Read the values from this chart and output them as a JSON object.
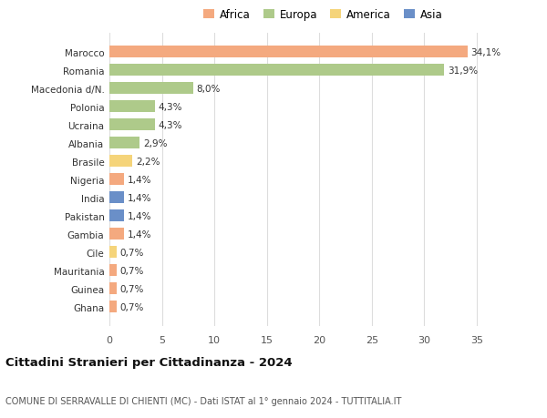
{
  "countries": [
    "Marocco",
    "Romania",
    "Macedonia d/N.",
    "Polonia",
    "Ucraina",
    "Albania",
    "Brasile",
    "Nigeria",
    "India",
    "Pakistan",
    "Gambia",
    "Cile",
    "Mauritania",
    "Guinea",
    "Ghana"
  ],
  "values": [
    34.1,
    31.9,
    8.0,
    4.3,
    4.3,
    2.9,
    2.2,
    1.4,
    1.4,
    1.4,
    1.4,
    0.7,
    0.7,
    0.7,
    0.7
  ],
  "labels": [
    "34,1%",
    "31,9%",
    "8,0%",
    "4,3%",
    "4,3%",
    "2,9%",
    "2,2%",
    "1,4%",
    "1,4%",
    "1,4%",
    "1,4%",
    "0,7%",
    "0,7%",
    "0,7%",
    "0,7%"
  ],
  "continents": [
    "Africa",
    "Europa",
    "Europa",
    "Europa",
    "Europa",
    "Europa",
    "America",
    "Africa",
    "Asia",
    "Asia",
    "Africa",
    "America",
    "Africa",
    "Africa",
    "Africa"
  ],
  "colors": {
    "Africa": "#F4A97F",
    "Europa": "#AECA8A",
    "America": "#F5D47A",
    "Asia": "#6A8FC8"
  },
  "legend_items": [
    "Africa",
    "Europa",
    "America",
    "Asia"
  ],
  "legend_colors": [
    "#F4A97F",
    "#AECA8A",
    "#F5D47A",
    "#6A8FC8"
  ],
  "title": "Cittadini Stranieri per Cittadinanza - 2024",
  "subtitle": "COMUNE DI SERRAVALLE DI CHIENTI (MC) - Dati ISTAT al 1° gennaio 2024 - TUTTITALIA.IT",
  "xlim": [
    0,
    37
  ],
  "xticks": [
    0,
    5,
    10,
    15,
    20,
    25,
    30,
    35
  ],
  "bg_color": "#ffffff",
  "bar_height": 0.65,
  "grid_color": "#dddddd"
}
